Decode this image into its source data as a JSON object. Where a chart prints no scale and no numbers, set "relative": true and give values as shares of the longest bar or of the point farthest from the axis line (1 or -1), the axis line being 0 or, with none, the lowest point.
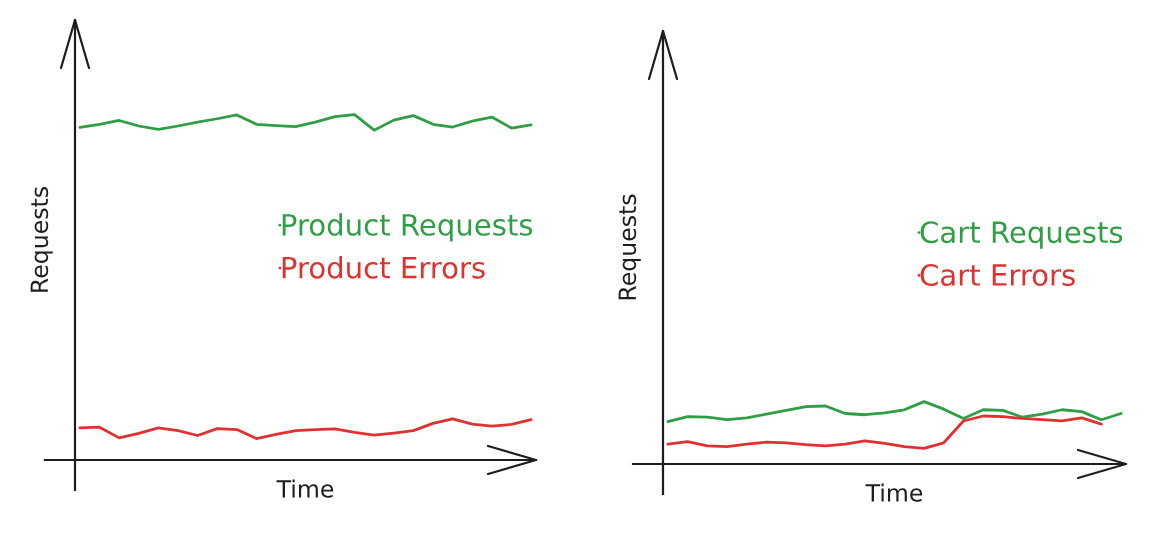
{
  "chart_data": [
    {
      "type": "line",
      "relative": true,
      "xlabel": "Time",
      "ylabel": "Requests",
      "legend": "right",
      "tick_labels": false,
      "categories": [
        null,
        null,
        null,
        null,
        null,
        null,
        null,
        null,
        null,
        null,
        null,
        null,
        null,
        null,
        null,
        null,
        null,
        null,
        null,
        null,
        null,
        null,
        null,
        null
      ],
      "series": [
        {
          "name": "Product Requests",
          "color": "#2f9e44",
          "values": [
            0.963,
            0.972,
            0.983,
            0.967,
            0.957,
            0.967,
            0.978,
            0.988,
            0.999,
            0.972,
            0.968,
            0.965,
            0.978,
            0.994,
            1.0,
            0.955,
            0.984,
            0.997,
            0.972,
            0.964,
            0.981,
            0.993,
            0.961,
            0.97
          ]
        },
        {
          "name": "Product Errors",
          "color": "#e03131",
          "values": [
            0.093,
            0.095,
            0.064,
            0.077,
            0.093,
            0.085,
            0.071,
            0.091,
            0.088,
            0.062,
            0.074,
            0.085,
            0.088,
            0.09,
            0.08,
            0.072,
            0.078,
            0.085,
            0.106,
            0.119,
            0.104,
            0.098,
            0.103,
            0.117
          ]
        }
      ]
    },
    {
      "type": "line",
      "relative": true,
      "xlabel": "Time",
      "ylabel": "Requests",
      "legend": "right",
      "tick_labels": false,
      "categories": [
        null,
        null,
        null,
        null,
        null,
        null,
        null,
        null,
        null,
        null,
        null,
        null,
        null,
        null,
        null,
        null,
        null,
        null,
        null,
        null,
        null,
        null,
        null,
        null
      ],
      "series": [
        {
          "name": "Cart Requests",
          "color": "#2f9e44",
          "values": [
            0.68,
            0.76,
            0.75,
            0.71,
            0.74,
            0.8,
            0.86,
            0.92,
            0.93,
            0.81,
            0.79,
            0.82,
            0.87,
            1.0,
            0.88,
            0.73,
            0.87,
            0.86,
            0.75,
            0.8,
            0.87,
            0.84,
            0.71,
            0.81
          ]
        },
        {
          "name": "Cart Errors",
          "color": "#e03131",
          "values": [
            0.32,
            0.36,
            0.29,
            0.28,
            0.32,
            0.35,
            0.34,
            0.31,
            0.29,
            0.32,
            0.37,
            0.33,
            0.28,
            0.25,
            0.34,
            0.69,
            0.77,
            0.76,
            0.73,
            0.71,
            0.69,
            0.74,
            0.64,
            null
          ]
        }
      ]
    }
  ]
}
